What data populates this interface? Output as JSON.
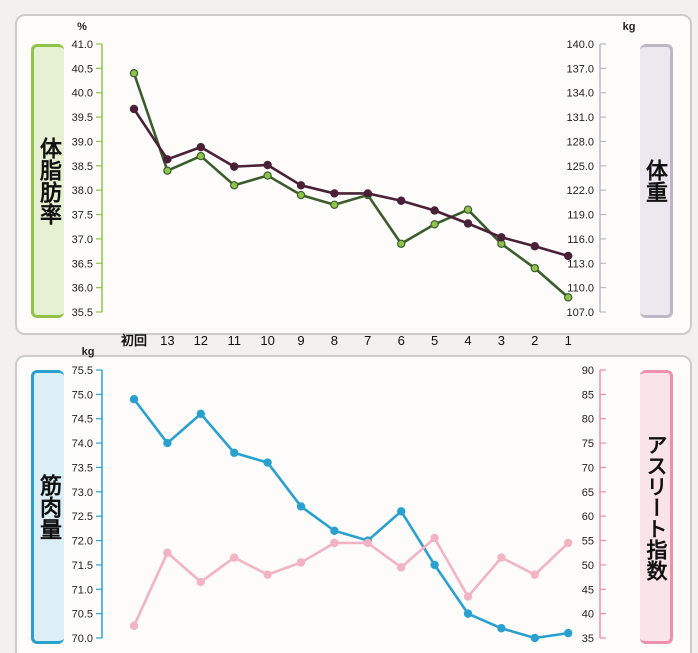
{
  "colors": {
    "fat_series": "#3b5d2e",
    "weight_series": "#4a2036",
    "muscle_series": "#2aa0cf",
    "athlete_series": "#f2b3c3",
    "fat_panel": "#8fc34a",
    "weight_panel": "#bdb7c4",
    "muscle_panel": "#2aa0cf",
    "athlete_panel": "#ee8fac"
  },
  "chart_data": [
    {
      "type": "line",
      "categories": [
        "初回",
        "13",
        "12",
        "11",
        "10",
        "9",
        "8",
        "7",
        "6",
        "5",
        "4",
        "3",
        "2",
        "1"
      ],
      "left_label": "体脂肪率",
      "left_unit": "%",
      "right_label": "体重",
      "right_unit": "kg",
      "left_ticks": [
        "41.0",
        "40.5",
        "40.0",
        "39.5",
        "39.0",
        "38.5",
        "38.0",
        "37.5",
        "37.0",
        "36.5",
        "36.0",
        "35.5"
      ],
      "right_ticks": [
        "140.0",
        "137.0",
        "134.0",
        "131.0",
        "128.0",
        "125.0",
        "122.0",
        "119.0",
        "116.0",
        "113.0",
        "110.0",
        "107.0"
      ],
      "left_ylim": [
        35.5,
        41.0
      ],
      "right_ylim": [
        107.0,
        140.0
      ],
      "grid": false,
      "series": [
        {
          "axis": "left",
          "values": [
            40.4,
            38.4,
            38.7,
            38.1,
            38.3,
            37.9,
            37.7,
            37.9,
            36.9,
            37.3,
            37.6,
            36.9,
            36.4,
            35.8
          ]
        },
        {
          "axis": "right",
          "values": [
            132.0,
            125.8,
            127.3,
            124.9,
            125.1,
            122.6,
            121.6,
            121.6,
            120.7,
            119.5,
            117.9,
            116.2,
            115.1,
            113.9
          ]
        }
      ]
    },
    {
      "type": "line",
      "categories": [
        "初回",
        "13",
        "12",
        "11",
        "10",
        "9",
        "8",
        "7",
        "6",
        "5",
        "4",
        "3",
        "2",
        "1"
      ],
      "left_label": "筋肉量",
      "left_unit": "kg",
      "right_label": "アスリート指数",
      "right_unit": "",
      "left_ticks": [
        "75.5",
        "75.0",
        "74.5",
        "74.0",
        "73.5",
        "73.0",
        "72.5",
        "72.0",
        "71.5",
        "71.0",
        "70.5",
        "70.0"
      ],
      "right_ticks": [
        "90",
        "85",
        "80",
        "75",
        "70",
        "65",
        "60",
        "55",
        "50",
        "45",
        "40",
        "35"
      ],
      "left_ylim": [
        70.0,
        75.5
      ],
      "right_ylim": [
        35,
        90
      ],
      "grid": false,
      "series": [
        {
          "axis": "left",
          "values": [
            74.9,
            74.0,
            74.6,
            73.8,
            73.6,
            72.7,
            72.2,
            72.0,
            72.6,
            71.5,
            70.5,
            70.2,
            70.0,
            70.1
          ]
        },
        {
          "axis": "right",
          "values": [
            37.5,
            52.5,
            46.5,
            51.5,
            48.0,
            50.5,
            54.5,
            54.5,
            49.5,
            55.5,
            43.5,
            51.5,
            48.0,
            54.5
          ]
        }
      ]
    }
  ]
}
